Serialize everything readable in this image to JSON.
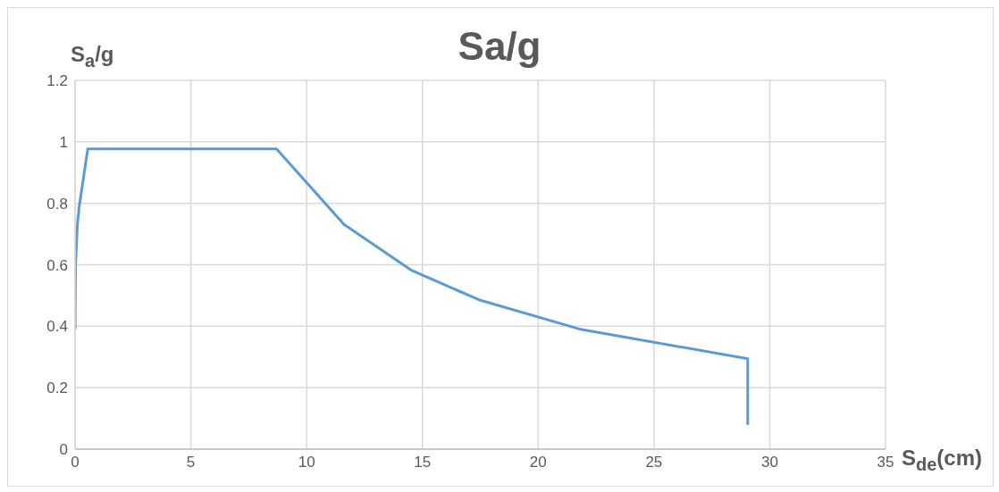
{
  "chart_data": {
    "type": "line",
    "title": "Sa/g",
    "xlabel": "S$_{de}$(cm)",
    "ylabel": "S$_{a}$/g",
    "x": [
      0,
      0.02,
      0.1,
      0.17,
      0.55,
      8.7,
      11.62,
      14.5,
      17.44,
      21.77,
      29.05,
      29.05
    ],
    "series": [
      {
        "color": "#5b9bd5",
        "values": [
          0.39,
          0.6,
          0.73,
          0.785,
          0.977,
          0.977,
          0.731,
          0.583,
          0.486,
          0.391,
          0.294,
          0.079
        ]
      }
    ],
    "xlim": [
      0,
      35
    ],
    "xticks": [
      0,
      5,
      10,
      15,
      20,
      25,
      30,
      35
    ],
    "ylim": [
      0,
      1.2
    ],
    "yticks": [
      0,
      0.2,
      0.4,
      0.6,
      0.8,
      1,
      1.2
    ],
    "grid": true,
    "marker": "none",
    "line_style": "solid"
  }
}
